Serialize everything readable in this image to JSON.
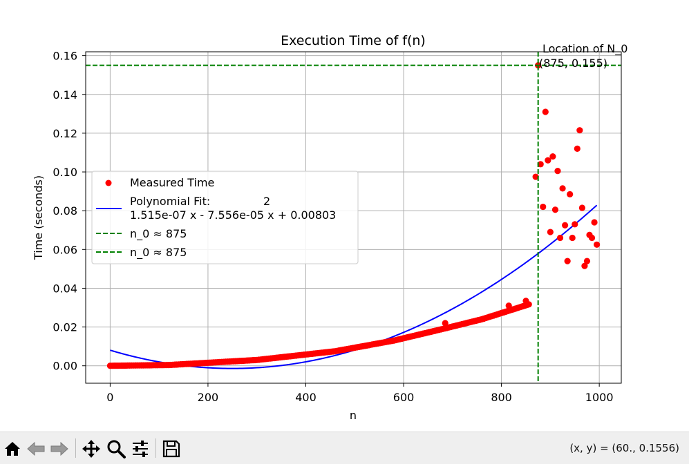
{
  "toolbar": {
    "buttons": [
      {
        "name": "home-button",
        "icon": "home-icon",
        "label": "Home"
      },
      {
        "name": "back-button",
        "icon": "back-arrow-icon",
        "label": "Back"
      },
      {
        "name": "forward-button",
        "icon": "forward-arrow-icon",
        "label": "Forward"
      },
      {
        "name": "pan-button",
        "icon": "pan-arrows-icon",
        "label": "Pan"
      },
      {
        "name": "zoom-button",
        "icon": "magnifier-icon",
        "label": "Zoom"
      },
      {
        "name": "configure-subplots-button",
        "icon": "sliders-icon",
        "label": "Subplots"
      },
      {
        "name": "save-button",
        "icon": "floppy-disk-icon",
        "label": "Save"
      }
    ],
    "coordinate_readout": "(x, y) = (60., 0.1556)"
  },
  "chart_data": {
    "type": "scatter",
    "title": "Execution Time of f(n)",
    "xlabel": "n",
    "ylabel": "Time (seconds)",
    "xlim": [
      -50,
      1045
    ],
    "ylim": [
      -0.009,
      0.162
    ],
    "x_ticks": [
      0,
      200,
      400,
      600,
      800,
      1000
    ],
    "x_tick_labels": [
      "0",
      "200",
      "400",
      "600",
      "800",
      "1000"
    ],
    "y_ticks": [
      0.0,
      0.02,
      0.04,
      0.06,
      0.08,
      0.1,
      0.12,
      0.14,
      0.16
    ],
    "y_tick_labels": [
      "0.00",
      "0.02",
      "0.04",
      "0.06",
      "0.08",
      "0.10",
      "0.12",
      "0.14",
      "0.16"
    ],
    "grid": true,
    "legend_placement": "center-left",
    "colors": {
      "measured": "#ff0000",
      "fit": "#0000ff",
      "n0": "#008000",
      "grid": "#b0b0b0"
    },
    "series": [
      {
        "name": "Measured Time",
        "kind": "scatter",
        "smooth_segments": [
          {
            "x_start": 0,
            "x_end": 120,
            "y_start": 0.0,
            "y_end": 0.0004
          },
          {
            "x_start": 120,
            "x_end": 300,
            "y_start": 0.0004,
            "y_end": 0.003
          },
          {
            "x_start": 300,
            "x_end": 460,
            "y_start": 0.003,
            "y_end": 0.0075
          },
          {
            "x_start": 460,
            "x_end": 580,
            "y_start": 0.0075,
            "y_end": 0.013
          },
          {
            "x_start": 580,
            "x_end": 680,
            "y_start": 0.013,
            "y_end": 0.019
          },
          {
            "x_start": 680,
            "x_end": 760,
            "y_start": 0.019,
            "y_end": 0.024
          },
          {
            "x_start": 760,
            "x_end": 860,
            "y_start": 0.024,
            "y_end": 0.032
          }
        ],
        "smooth_step": 4,
        "outliers": [
          {
            "x": 685,
            "y": 0.022
          },
          {
            "x": 815,
            "y": 0.031
          },
          {
            "x": 850,
            "y": 0.0335
          },
          {
            "x": 870,
            "y": 0.0975
          },
          {
            "x": 875,
            "y": 0.155
          },
          {
            "x": 880,
            "y": 0.104
          },
          {
            "x": 885,
            "y": 0.082
          },
          {
            "x": 890,
            "y": 0.131
          },
          {
            "x": 895,
            "y": 0.106
          },
          {
            "x": 900,
            "y": 0.069
          },
          {
            "x": 905,
            "y": 0.108
          },
          {
            "x": 910,
            "y": 0.0805
          },
          {
            "x": 915,
            "y": 0.1005
          },
          {
            "x": 920,
            "y": 0.066
          },
          {
            "x": 925,
            "y": 0.0915
          },
          {
            "x": 930,
            "y": 0.0725
          },
          {
            "x": 935,
            "y": 0.054
          },
          {
            "x": 940,
            "y": 0.0885
          },
          {
            "x": 945,
            "y": 0.066
          },
          {
            "x": 950,
            "y": 0.073
          },
          {
            "x": 955,
            "y": 0.112
          },
          {
            "x": 960,
            "y": 0.1215
          },
          {
            "x": 965,
            "y": 0.0815
          },
          {
            "x": 970,
            "y": 0.0515
          },
          {
            "x": 975,
            "y": 0.054
          },
          {
            "x": 980,
            "y": 0.0675
          },
          {
            "x": 985,
            "y": 0.066
          },
          {
            "x": 990,
            "y": 0.074
          },
          {
            "x": 995,
            "y": 0.0625
          }
        ]
      },
      {
        "name": "Polynomial Fit:",
        "kind": "line",
        "exponent_label": "2",
        "equation_label": "1.515e-07 x - 7.556e-05 x + 0.00803",
        "coefficients": [
          1.515e-07,
          -7.556e-05,
          0.00803
        ],
        "x_range": [
          0,
          995
        ]
      },
      {
        "name": "n_0 ≈ 875",
        "kind": "vline",
        "x": 875
      },
      {
        "name": "n_0 ≈ 875",
        "kind": "hline",
        "y": 0.155
      }
    ],
    "annotation": {
      "line1": "Location of N_0",
      "line2": "(875, 0.155)",
      "x": 875,
      "y": 0.155
    }
  }
}
